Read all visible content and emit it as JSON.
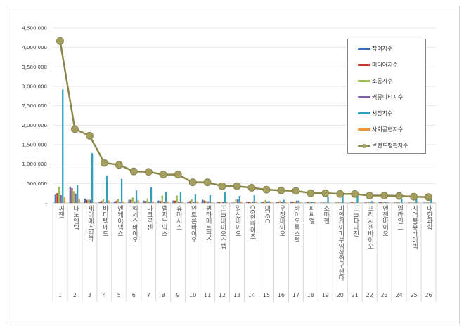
{
  "chart_data": {
    "type": "bar+line",
    "title": "",
    "ylim": [
      0,
      4500000
    ],
    "yticks": [
      "-",
      "500,000",
      "1,000,000",
      "1,500,000",
      "2,000,000",
      "2,500,000",
      "3,000,000",
      "3,500,000",
      "4,000,000",
      "4,500,000"
    ],
    "ytick_values": [
      0,
      500000,
      1000000,
      1500000,
      2000000,
      2500000,
      3000000,
      3500000,
      4000000,
      4500000
    ],
    "ranks": [
      "1",
      "2",
      "3",
      "4",
      "5",
      "6",
      "7",
      "8",
      "9",
      "10",
      "11",
      "12",
      "13",
      "14",
      "15",
      "16",
      "17",
      "18",
      "19",
      "20",
      "21",
      "22",
      "23",
      "24",
      "25",
      "26"
    ],
    "categories": [
      "씨젠",
      "나노엔텍",
      "제이에스링크",
      "바디텍메드",
      "엔케이맥스",
      "엑세스바이오",
      "마크로젠",
      "랩지노믹스",
      "휴마시스",
      "인트론바이오",
      "퀀타매트릭스",
      "HLB바이오스텝",
      "일신바이오",
      "CG인바이츠",
      "EDGC",
      "우정바이오",
      "바이오톡스텍",
      "피씨엘",
      "소마젠",
      "피엔케이피부임상연구센타",
      "HLB파나진",
      "프리시젠바이오",
      "엔젠바이오",
      "엘라인드",
      "지더블유바이텍",
      "대한과학"
    ],
    "legend_position": "top-right",
    "grid": true,
    "series": [
      {
        "name": "참여지수",
        "type": "bar",
        "color": "#3d6db5",
        "values": [
          210000,
          420000,
          110000,
          30000,
          40000,
          80000,
          60000,
          60000,
          60000,
          30000,
          80000,
          20000,
          10000,
          40000,
          20000,
          20000,
          30000,
          10000,
          10000,
          10000,
          10000,
          10000,
          20000,
          10000,
          10000,
          10000
        ]
      },
      {
        "name": "미디어지수",
        "type": "bar",
        "color": "#c0392b",
        "values": [
          250000,
          380000,
          80000,
          50000,
          50000,
          80000,
          50000,
          50000,
          60000,
          50000,
          60000,
          20000,
          10000,
          30000,
          30000,
          30000,
          30000,
          20000,
          10000,
          10000,
          20000,
          10000,
          20000,
          10000,
          10000,
          10000
        ]
      },
      {
        "name": "소통지수",
        "type": "bar",
        "color": "#9bbb59",
        "values": [
          410000,
          300000,
          80000,
          90000,
          100000,
          140000,
          120000,
          190000,
          190000,
          90000,
          50000,
          30000,
          90000,
          30000,
          70000,
          60000,
          40000,
          40000,
          20000,
          20000,
          20000,
          30000,
          20000,
          20000,
          20000,
          20000
        ]
      },
      {
        "name": "커뮤니티지수",
        "type": "bar",
        "color": "#7e60a8",
        "values": [
          200000,
          240000,
          80000,
          20000,
          30000,
          40000,
          20000,
          30000,
          40000,
          20000,
          40000,
          20000,
          90000,
          30000,
          40000,
          30000,
          60000,
          20000,
          10000,
          10000,
          10000,
          20000,
          30000,
          10000,
          10000,
          10000
        ]
      },
      {
        "name": "시장지수",
        "type": "bar",
        "color": "#31a0b8",
        "values": [
          2920000,
          450000,
          1280000,
          700000,
          620000,
          320000,
          400000,
          280000,
          280000,
          220000,
          200000,
          280000,
          180000,
          200000,
          50000,
          80000,
          60000,
          30000,
          170000,
          200000,
          180000,
          50000,
          30000,
          100000,
          160000,
          100000
        ]
      },
      {
        "name": "사회공헌지수",
        "type": "bar",
        "color": "#f0963a",
        "values": [
          160000,
          100000,
          10000,
          60000,
          40000,
          70000,
          40000,
          40000,
          40000,
          40000,
          30000,
          20000,
          30000,
          30000,
          30000,
          30000,
          20000,
          20000,
          10000,
          10000,
          10000,
          20000,
          20000,
          10000,
          10000,
          10000
        ]
      },
      {
        "name": "브랜드평판지수",
        "type": "line",
        "color": "#8a8748",
        "values": [
          4170000,
          1900000,
          1730000,
          1030000,
          980000,
          810000,
          800000,
          730000,
          730000,
          530000,
          530000,
          430000,
          430000,
          390000,
          340000,
          320000,
          310000,
          250000,
          250000,
          230000,
          230000,
          190000,
          190000,
          180000,
          160000,
          150000
        ]
      }
    ]
  }
}
